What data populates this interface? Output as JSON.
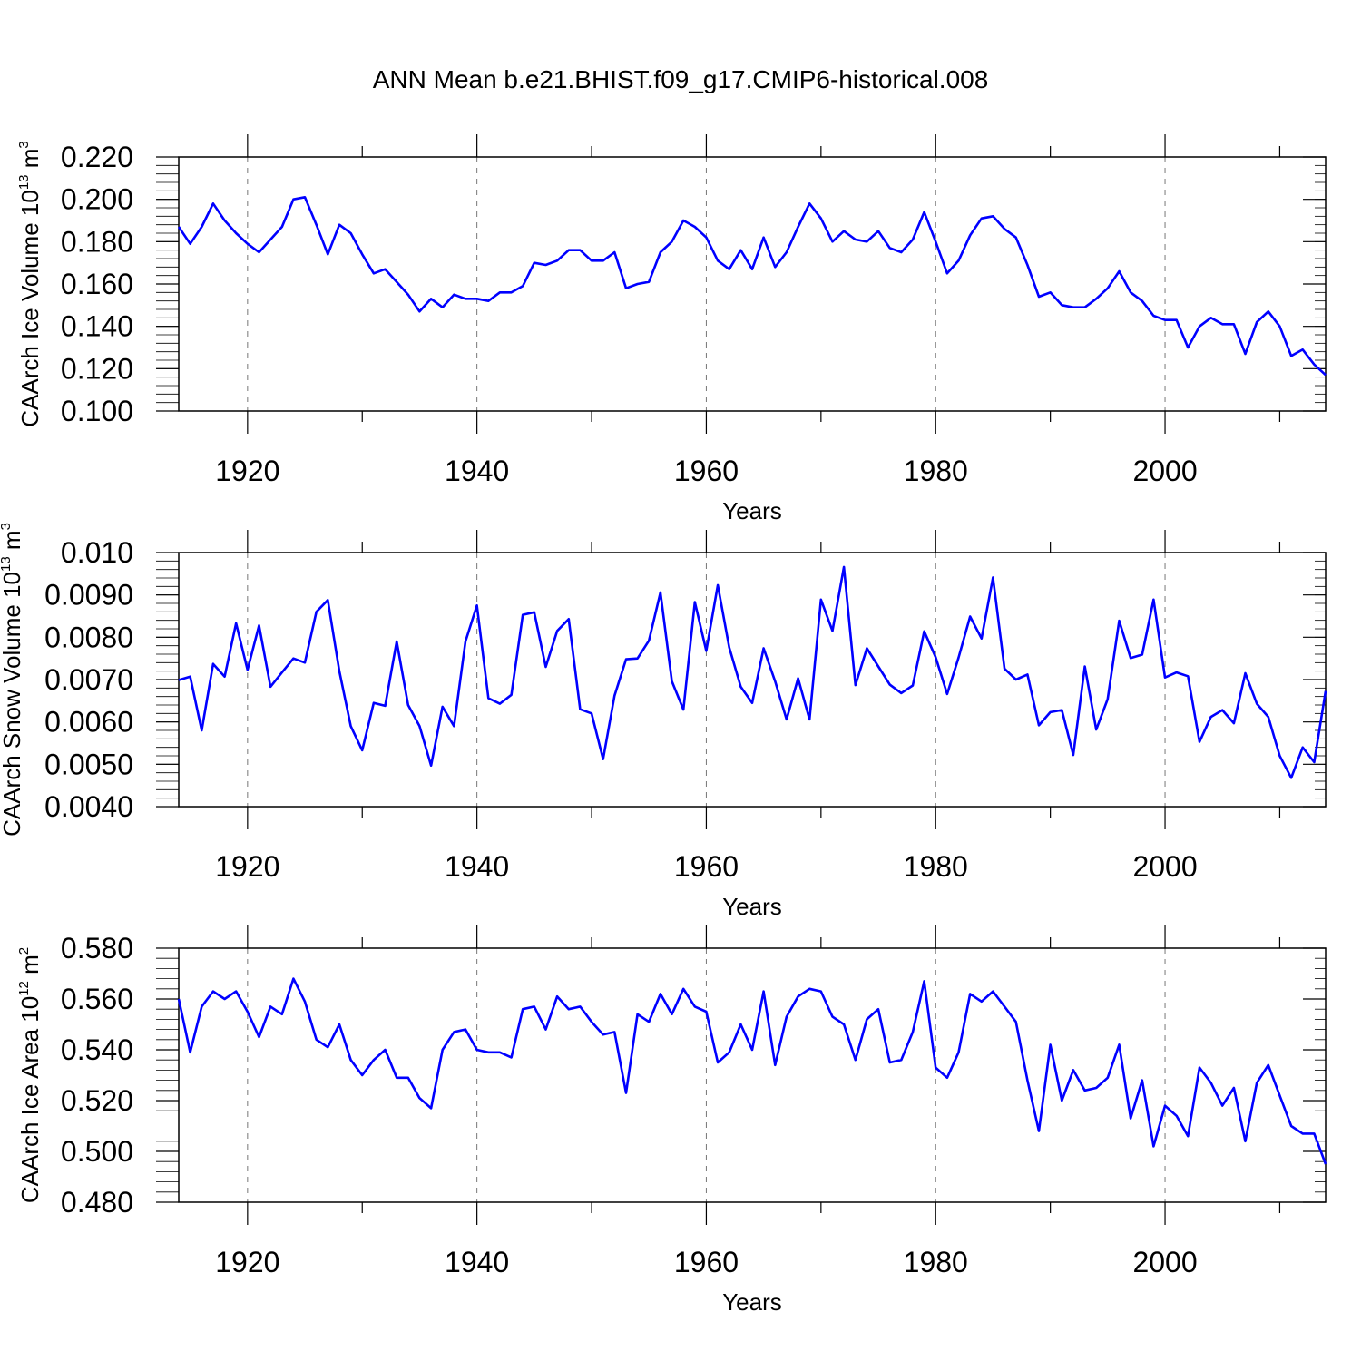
{
  "title": "ANN Mean b.e21.BHIST.f09_g17.CMIP6-historical.008",
  "colors": {
    "line": "#0000ff",
    "axis": "#000000",
    "grid": "#777777"
  },
  "chart_data": [
    {
      "type": "line",
      "name": "ice-volume",
      "ylabel_prefix": "CAArch Ice Volume 10",
      "ylabel_exp": "13",
      "ylabel_unit": "m",
      "ylabel_unit_exp": "3",
      "xlabel": "Years",
      "xlim": [
        1914,
        2014
      ],
      "ylim": [
        0.1,
        0.22
      ],
      "x_ticks": [
        1920,
        1940,
        1960,
        1980,
        2000
      ],
      "x_tick_labels": [
        "1920",
        "1940",
        "1960",
        "1980",
        "2000"
      ],
      "y_ticks": [
        0.1,
        0.12,
        0.14,
        0.16,
        0.18,
        0.2,
        0.22
      ],
      "y_tick_labels": [
        "0.100",
        "0.120",
        "0.140",
        "0.160",
        "0.180",
        "0.200",
        "0.220"
      ],
      "y_minor_step": 0.004,
      "x_start": 1914,
      "values": [
        0.187,
        0.179,
        0.187,
        0.198,
        0.19,
        0.184,
        0.179,
        0.175,
        0.181,
        0.187,
        0.2,
        0.201,
        0.188,
        0.174,
        0.188,
        0.184,
        0.174,
        0.165,
        0.167,
        0.161,
        0.155,
        0.147,
        0.153,
        0.149,
        0.155,
        0.153,
        0.153,
        0.152,
        0.156,
        0.156,
        0.159,
        0.17,
        0.169,
        0.171,
        0.176,
        0.176,
        0.171,
        0.171,
        0.175,
        0.158,
        0.16,
        0.161,
        0.175,
        0.18,
        0.19,
        0.187,
        0.182,
        0.171,
        0.167,
        0.176,
        0.167,
        0.182,
        0.168,
        0.175,
        0.187,
        0.198,
        0.191,
        0.18,
        0.185,
        0.181,
        0.18,
        0.185,
        0.177,
        0.175,
        0.181,
        0.194,
        0.18,
        0.165,
        0.171,
        0.183,
        0.191,
        0.192,
        0.186,
        0.182,
        0.169,
        0.154,
        0.156,
        0.15,
        0.149,
        0.149,
        0.153,
        0.158,
        0.166,
        0.156,
        0.152,
        0.145,
        0.143,
        0.143,
        0.13,
        0.14,
        0.144,
        0.141,
        0.141,
        0.127,
        0.142,
        0.147,
        0.14,
        0.126,
        0.129,
        0.122,
        0.117
      ]
    },
    {
      "type": "line",
      "name": "snow-volume",
      "ylabel_prefix": "CAArch Snow Volume 10",
      "ylabel_exp": "13",
      "ylabel_unit": "m",
      "ylabel_unit_exp": "3",
      "xlabel": "Years",
      "xlim": [
        1914,
        2014
      ],
      "ylim": [
        0.004,
        0.01
      ],
      "x_ticks": [
        1920,
        1940,
        1960,
        1980,
        2000
      ],
      "x_tick_labels": [
        "1920",
        "1940",
        "1960",
        "1980",
        "2000"
      ],
      "y_ticks": [
        0.004,
        0.005,
        0.006,
        0.007,
        0.008,
        0.009,
        0.01
      ],
      "y_tick_labels": [
        "0.0040",
        "0.0050",
        "0.0060",
        "0.0070",
        "0.0080",
        "0.0090",
        "0.010"
      ],
      "y_minor_step": 0.0002,
      "x_start": 1914,
      "values": [
        0.00699,
        0.00707,
        0.0058,
        0.00737,
        0.00707,
        0.00833,
        0.00723,
        0.00828,
        0.00683,
        0.00717,
        0.0075,
        0.0074,
        0.0086,
        0.00888,
        0.0072,
        0.0059,
        0.00533,
        0.00645,
        0.00638,
        0.0079,
        0.0064,
        0.0059,
        0.00497,
        0.00636,
        0.0059,
        0.0079,
        0.00875,
        0.00656,
        0.00643,
        0.00664,
        0.00853,
        0.00859,
        0.0073,
        0.00815,
        0.00843,
        0.0063,
        0.0062,
        0.00512,
        0.00662,
        0.00748,
        0.0075,
        0.00792,
        0.00906,
        0.00696,
        0.00629,
        0.00883,
        0.00768,
        0.00923,
        0.00776,
        0.00683,
        0.00645,
        0.00774,
        0.00696,
        0.00606,
        0.00703,
        0.00606,
        0.00889,
        0.00815,
        0.00966,
        0.00687,
        0.00774,
        0.00731,
        0.00688,
        0.00668,
        0.00686,
        0.00814,
        0.00753,
        0.00666,
        0.00752,
        0.00849,
        0.00797,
        0.00941,
        0.00726,
        0.007,
        0.00712,
        0.00592,
        0.00623,
        0.00628,
        0.00522,
        0.00731,
        0.00582,
        0.00654,
        0.00839,
        0.00751,
        0.00759,
        0.00889,
        0.00705,
        0.00717,
        0.00708,
        0.00553,
        0.00612,
        0.00628,
        0.00597,
        0.00715,
        0.00643,
        0.00612,
        0.0052,
        0.00468,
        0.0054,
        0.00505,
        0.00673
      ]
    },
    {
      "type": "line",
      "name": "ice-area",
      "ylabel_prefix": "CAArch Ice Area 10",
      "ylabel_exp": "12",
      "ylabel_unit": "m",
      "ylabel_unit_exp": "2",
      "xlabel": "Years",
      "xlim": [
        1914,
        2014
      ],
      "ylim": [
        0.48,
        0.58
      ],
      "x_ticks": [
        1920,
        1940,
        1960,
        1980,
        2000
      ],
      "x_tick_labels": [
        "1920",
        "1940",
        "1960",
        "1980",
        "2000"
      ],
      "y_ticks": [
        0.48,
        0.5,
        0.52,
        0.54,
        0.56,
        0.58
      ],
      "y_tick_labels": [
        "0.480",
        "0.500",
        "0.520",
        "0.540",
        "0.560",
        "0.580"
      ],
      "y_minor_step": 0.004,
      "x_start": 1914,
      "values": [
        0.56,
        0.539,
        0.557,
        0.563,
        0.56,
        0.563,
        0.555,
        0.545,
        0.557,
        0.554,
        0.568,
        0.559,
        0.544,
        0.541,
        0.55,
        0.536,
        0.53,
        0.536,
        0.54,
        0.529,
        0.529,
        0.521,
        0.517,
        0.54,
        0.547,
        0.548,
        0.54,
        0.539,
        0.539,
        0.537,
        0.556,
        0.557,
        0.548,
        0.561,
        0.556,
        0.557,
        0.551,
        0.546,
        0.547,
        0.523,
        0.554,
        0.551,
        0.562,
        0.554,
        0.564,
        0.557,
        0.555,
        0.535,
        0.539,
        0.55,
        0.54,
        0.563,
        0.534,
        0.553,
        0.561,
        0.564,
        0.563,
        0.553,
        0.55,
        0.536,
        0.552,
        0.556,
        0.535,
        0.536,
        0.547,
        0.567,
        0.533,
        0.529,
        0.539,
        0.562,
        0.559,
        0.563,
        0.557,
        0.551,
        0.528,
        0.508,
        0.542,
        0.52,
        0.532,
        0.524,
        0.525,
        0.529,
        0.542,
        0.513,
        0.528,
        0.502,
        0.518,
        0.514,
        0.506,
        0.533,
        0.527,
        0.518,
        0.525,
        0.504,
        0.527,
        0.534,
        0.522,
        0.51,
        0.507,
        0.507,
        0.495
      ]
    }
  ]
}
